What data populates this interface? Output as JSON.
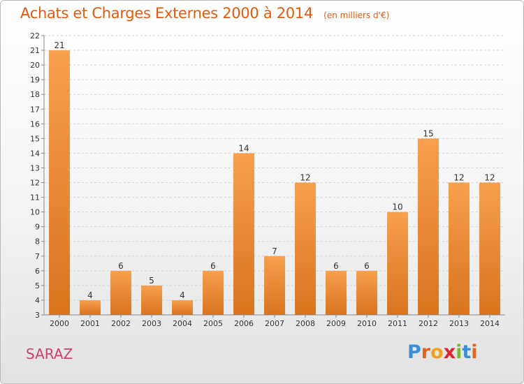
{
  "chart_data": {
    "type": "bar",
    "title": "Achats et Charges Externes 2000 à 2014",
    "subtitle": "(en milliers d'€)",
    "categories": [
      "2000",
      "2001",
      "2002",
      "2003",
      "2004",
      "2005",
      "2006",
      "2007",
      "2008",
      "2009",
      "2010",
      "2011",
      "2012",
      "2013",
      "2014"
    ],
    "values": [
      21,
      4,
      6,
      5,
      4,
      6,
      14,
      7,
      12,
      6,
      6,
      10,
      15,
      12,
      12
    ],
    "ylim": [
      3,
      22
    ],
    "yticks": [
      3,
      4,
      5,
      6,
      7,
      8,
      9,
      10,
      11,
      12,
      13,
      14,
      15,
      16,
      17,
      18,
      19,
      20,
      21,
      22
    ],
    "grid": true,
    "bar_color_top": "#f7a04e",
    "bar_color_bottom": "#d9731e",
    "xlabel": "",
    "ylabel": ""
  },
  "commune": "SARAZ",
  "logo": {
    "letters": [
      "P",
      "r",
      "o",
      "x",
      "i",
      "t",
      "i"
    ],
    "colors": [
      "#3a8fd6",
      "#e8641e",
      "#f0a020",
      "#d8262e",
      "#7cb83a",
      "#3a8fd6",
      "#e8641e"
    ]
  }
}
